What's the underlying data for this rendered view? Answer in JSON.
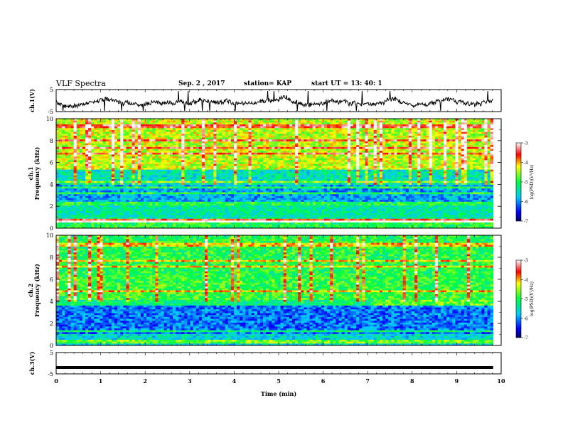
{
  "header": {
    "title": "VLF Spectra",
    "date": "Sep. 2  , 2017",
    "station": "station= KAP",
    "start": "start  UT  =   13: 40: 1"
  },
  "chart_data": [
    {
      "type": "line",
      "ylabel": "ch.1(V)",
      "ylim": [
        -5,
        5
      ],
      "yticks": [
        "5",
        "-5"
      ],
      "xlim": [
        0,
        10
      ],
      "x_end": 9.82,
      "series": [
        {
          "color": "#000000",
          "style": "noisy waveform around 0 V",
          "amplitude": 2
        }
      ]
    },
    {
      "type": "heatmap",
      "ylabel": "ch.1\nFrequency (kHz)",
      "ylim": [
        0,
        10
      ],
      "yticks": [
        "0",
        "2",
        "4",
        "6",
        "8",
        "10"
      ],
      "xlim": [
        0,
        10
      ],
      "x_end": 9.82,
      "colorbar": {
        "label": "log(PSD)(V²/Hz)",
        "range": [
          -7,
          -3
        ],
        "ticks": [
          "-3",
          "-4",
          "-5",
          "-6",
          "-7"
        ]
      },
      "bands": [
        {
          "from": 0,
          "to": 0.5,
          "level": -5.0
        },
        {
          "from": 0.5,
          "to": 0.9,
          "level": -3.6
        },
        {
          "from": 0.9,
          "to": 2.0,
          "level": -5.4
        },
        {
          "from": 2.0,
          "to": 2.5,
          "level": -5.0
        },
        {
          "from": 2.5,
          "to": 4.0,
          "level": -5.9
        },
        {
          "from": 4.0,
          "to": 5.3,
          "level": -5.5
        },
        {
          "from": 5.3,
          "to": 10,
          "level": -4.4
        }
      ]
    },
    {
      "type": "heatmap",
      "ylabel": "ch.2\nFrequency (kHz)",
      "ylim": [
        0,
        10
      ],
      "yticks": [
        "0",
        "2",
        "4",
        "6",
        "8",
        "10"
      ],
      "xlim": [
        0,
        10
      ],
      "x_end": 9.82,
      "colorbar": {
        "label": "log(PSD)(V²/Hz)",
        "range": [
          -7,
          -3
        ],
        "ticks": [
          "-3",
          "-4",
          "-5",
          "-6",
          "-7"
        ]
      },
      "bands": [
        {
          "from": 0,
          "to": 1.0,
          "level": -5.6
        },
        {
          "from": 1.0,
          "to": 3.6,
          "level": -6.1
        },
        {
          "from": 3.6,
          "to": 4.2,
          "level": -5.2
        },
        {
          "from": 4.2,
          "to": 6.2,
          "level": -4.9
        },
        {
          "from": 6.2,
          "to": 10,
          "level": -5.0
        }
      ]
    },
    {
      "type": "line",
      "ylabel": "ch.3(V)",
      "ylim": [
        -5,
        5
      ],
      "yticks": [
        "5",
        "-5"
      ],
      "xlim": [
        0,
        10
      ],
      "x_end": 9.82,
      "xlabel": "Time  (min)",
      "xticks": [
        "0",
        "1",
        "2",
        "3",
        "4",
        "5",
        "6",
        "7",
        "8",
        "9",
        "10"
      ],
      "series": [
        {
          "color": "#000000",
          "style": "constant",
          "value": -2
        }
      ]
    }
  ]
}
